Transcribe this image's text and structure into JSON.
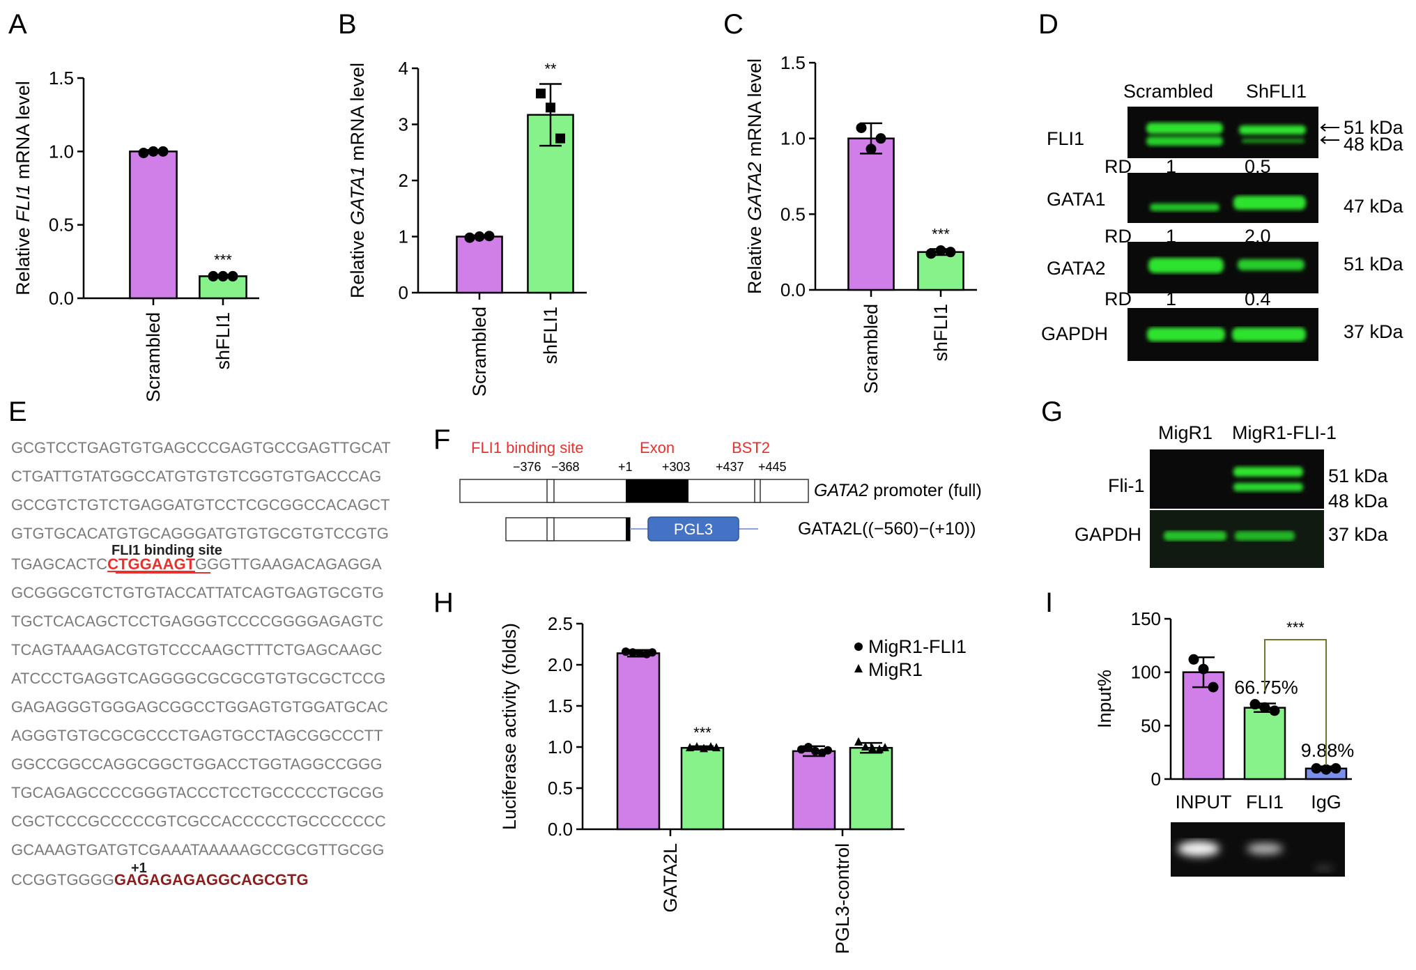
{
  "panels": {
    "A": "A",
    "B": "B",
    "C": "C",
    "D": "D",
    "E": "E",
    "F": "F",
    "G": "G",
    "H": "H",
    "I": "I"
  },
  "colors": {
    "purple": "#d07ee8",
    "green": "#88f28a",
    "blue": "#7b8fe8"
  },
  "chart_data": [
    {
      "id": "A",
      "type": "bar",
      "categories": [
        "Scrambled",
        "shFLI1"
      ],
      "values": [
        1.0,
        0.15
      ],
      "errors": [
        0.01,
        0.01
      ],
      "points": [
        [
          0.99,
          1.0,
          1.0
        ],
        [
          0.15,
          0.15,
          0.15
        ]
      ],
      "ylim": [
        0,
        1.5
      ],
      "yticks": [
        "0.0",
        "0.5",
        "1.0",
        "1.5"
      ],
      "ylabel_pre": "Relative ",
      "ylabel_gene": "FLI1",
      "ylabel_post": " mRNA level",
      "significance": [
        "",
        "***"
      ]
    },
    {
      "id": "B",
      "type": "bar",
      "categories": [
        "Scrambled",
        "shFLI1"
      ],
      "values": [
        1.0,
        3.17
      ],
      "errors": [
        0.02,
        0.55
      ],
      "points": [
        [
          0.98,
          1.0,
          1.01
        ],
        [
          3.55,
          3.3,
          2.75
        ]
      ],
      "ylim": [
        0,
        4
      ],
      "yticks": [
        "0",
        "1",
        "2",
        "3",
        "4"
      ],
      "ylabel_pre": "Relative ",
      "ylabel_gene": "GATA1",
      "ylabel_post": " mRNA level",
      "significance": [
        "",
        "**"
      ]
    },
    {
      "id": "C",
      "type": "bar",
      "categories": [
        "Scrambled",
        "shFLI1"
      ],
      "values": [
        1.0,
        0.25
      ],
      "errors": [
        0.1,
        0.02
      ],
      "points": [
        [
          1.07,
          0.93,
          1.0
        ],
        [
          0.24,
          0.26,
          0.25
        ]
      ],
      "ylim": [
        0,
        1.5
      ],
      "yticks": [
        "0.0",
        "0.5",
        "1.0",
        "1.5"
      ],
      "ylabel_pre": "Relative ",
      "ylabel_gene": "GATA2",
      "ylabel_post": " mRNA level",
      "significance": [
        "",
        "***"
      ]
    },
    {
      "id": "H",
      "type": "bar",
      "categories": [
        "GATA2L",
        "PGL3-control"
      ],
      "series": [
        {
          "name": "MigR1-FLI1",
          "values": [
            2.14,
            0.95
          ],
          "errors": [
            0.04,
            0.06
          ]
        },
        {
          "name": "MigR1",
          "values": [
            0.99,
            0.99
          ],
          "errors": [
            0.02,
            0.06
          ]
        }
      ],
      "ylim": [
        0,
        2.5
      ],
      "yticks": [
        "0.0",
        "0.5",
        "1.0",
        "1.5",
        "2.0",
        "2.5"
      ],
      "ylabel": "Luciferase activity (folds)",
      "significance": [
        "",
        "***",
        "",
        ""
      ],
      "legend": "top-right"
    },
    {
      "id": "I",
      "type": "bar",
      "categories": [
        "INPUT",
        "FLI1",
        "IgG"
      ],
      "values": [
        100,
        66.75,
        9.88
      ],
      "errors": [
        14,
        4,
        2
      ],
      "points": [
        [
          112,
          103,
          86
        ],
        [
          70,
          67,
          64
        ],
        [
          10,
          9,
          10
        ]
      ],
      "ylim": [
        0,
        150
      ],
      "yticks": [
        "0",
        "50",
        "100",
        "150"
      ],
      "ylabel": "Input%",
      "bar_labels": [
        "",
        "66.75%",
        "9.88%"
      ],
      "significance_bracket": "***"
    }
  ],
  "panel_D": {
    "lanes": [
      "Scrambled",
      "ShFLI1"
    ],
    "rows": [
      {
        "name": "FLI1",
        "kda": [
          "51 kDa",
          "48 kDa"
        ]
      },
      {
        "name": "GATA1",
        "kda": [
          "47 kDa"
        ]
      },
      {
        "name": "GATA2",
        "kda": [
          "51 kDa"
        ]
      },
      {
        "name": "GAPDH",
        "kda": [
          "37 kDa"
        ]
      }
    ],
    "rd_label": "RD",
    "rd_values": [
      [
        "1",
        "0.5"
      ],
      [
        "1",
        "2.0"
      ],
      [
        "1",
        "0.4"
      ]
    ]
  },
  "panel_E": {
    "lines": [
      "GCGTCCTGAGTGTGAGCCCGAGTGCCGAGTTGCAT",
      "CTGATTGTATGGCCATGTGTGTCGGTGTGACCCAG",
      "GCCGTCTGTCTGAGGATGTCCTCGCGGCCACAGCT",
      "GTGTGCACATGTGCAGGGATGTGTGCGTGTCCGTG"
    ],
    "site_label": "FLI1 binding site",
    "site_pre": "TGAGCACTC",
    "site_seq": "CTGGAAGT",
    "site_post": "GGGTTGAAGACAGAGGA",
    "lines2": [
      "GCGGGCGTCTGTGTACCATTATCAGTGAGTGCGTG",
      "TGCTCACAGCTCCTGAGGGTCCCCGGGGAGAGTC",
      "TCAGTAAAGACGTGTCCCAAGCTTTCTGAGCAAGC",
      "ATCCCTGAGGTCAGGGGCGCGCGTGTGCGCTCCG",
      "GAGAGGGTGGGAGCGGCCTGGAGTGTGGATGCAC",
      "AGGGTGTGCGCGCCCTGAGTGCCTAGCGGCCCTT",
      "GGCCGGCCAGGCGGCTGGACCTGGTAGGCCGGG",
      "TGCAGAGCCCCGGGTACCCTCCTGCCCCCTGCGG",
      "CGCTCCCGCCCCCGTCGCCACCCCCTGCCCCCCC",
      "GCAAAGTGATGTCGAAATAAAAAGCCGCGTTGCGG"
    ],
    "plus1_label": "+1",
    "last_pre": "CCGGTGGGG",
    "last_exon": "GAGAGAGAGGCAGCGTG"
  },
  "panel_F": {
    "region_labels": [
      "FLI1 binding site",
      "Exon",
      "BST2"
    ],
    "positions": [
      "−376",
      "−368",
      "+1",
      "+303",
      "+437",
      "+445"
    ],
    "full_gene": "GATA2",
    "full_suffix": " promoter (full)",
    "pgl3_label": "PGL3",
    "construct_label": "GATA2L((−560)−(+10))"
  },
  "panel_G": {
    "lanes": [
      "MigR1",
      "MigR1-FLI-1"
    ],
    "rows": [
      {
        "name": "Fli-1",
        "kda": [
          "51 kDa",
          "48 kDa"
        ]
      },
      {
        "name": "GAPDH",
        "kda": [
          "37 kDa"
        ]
      }
    ]
  }
}
